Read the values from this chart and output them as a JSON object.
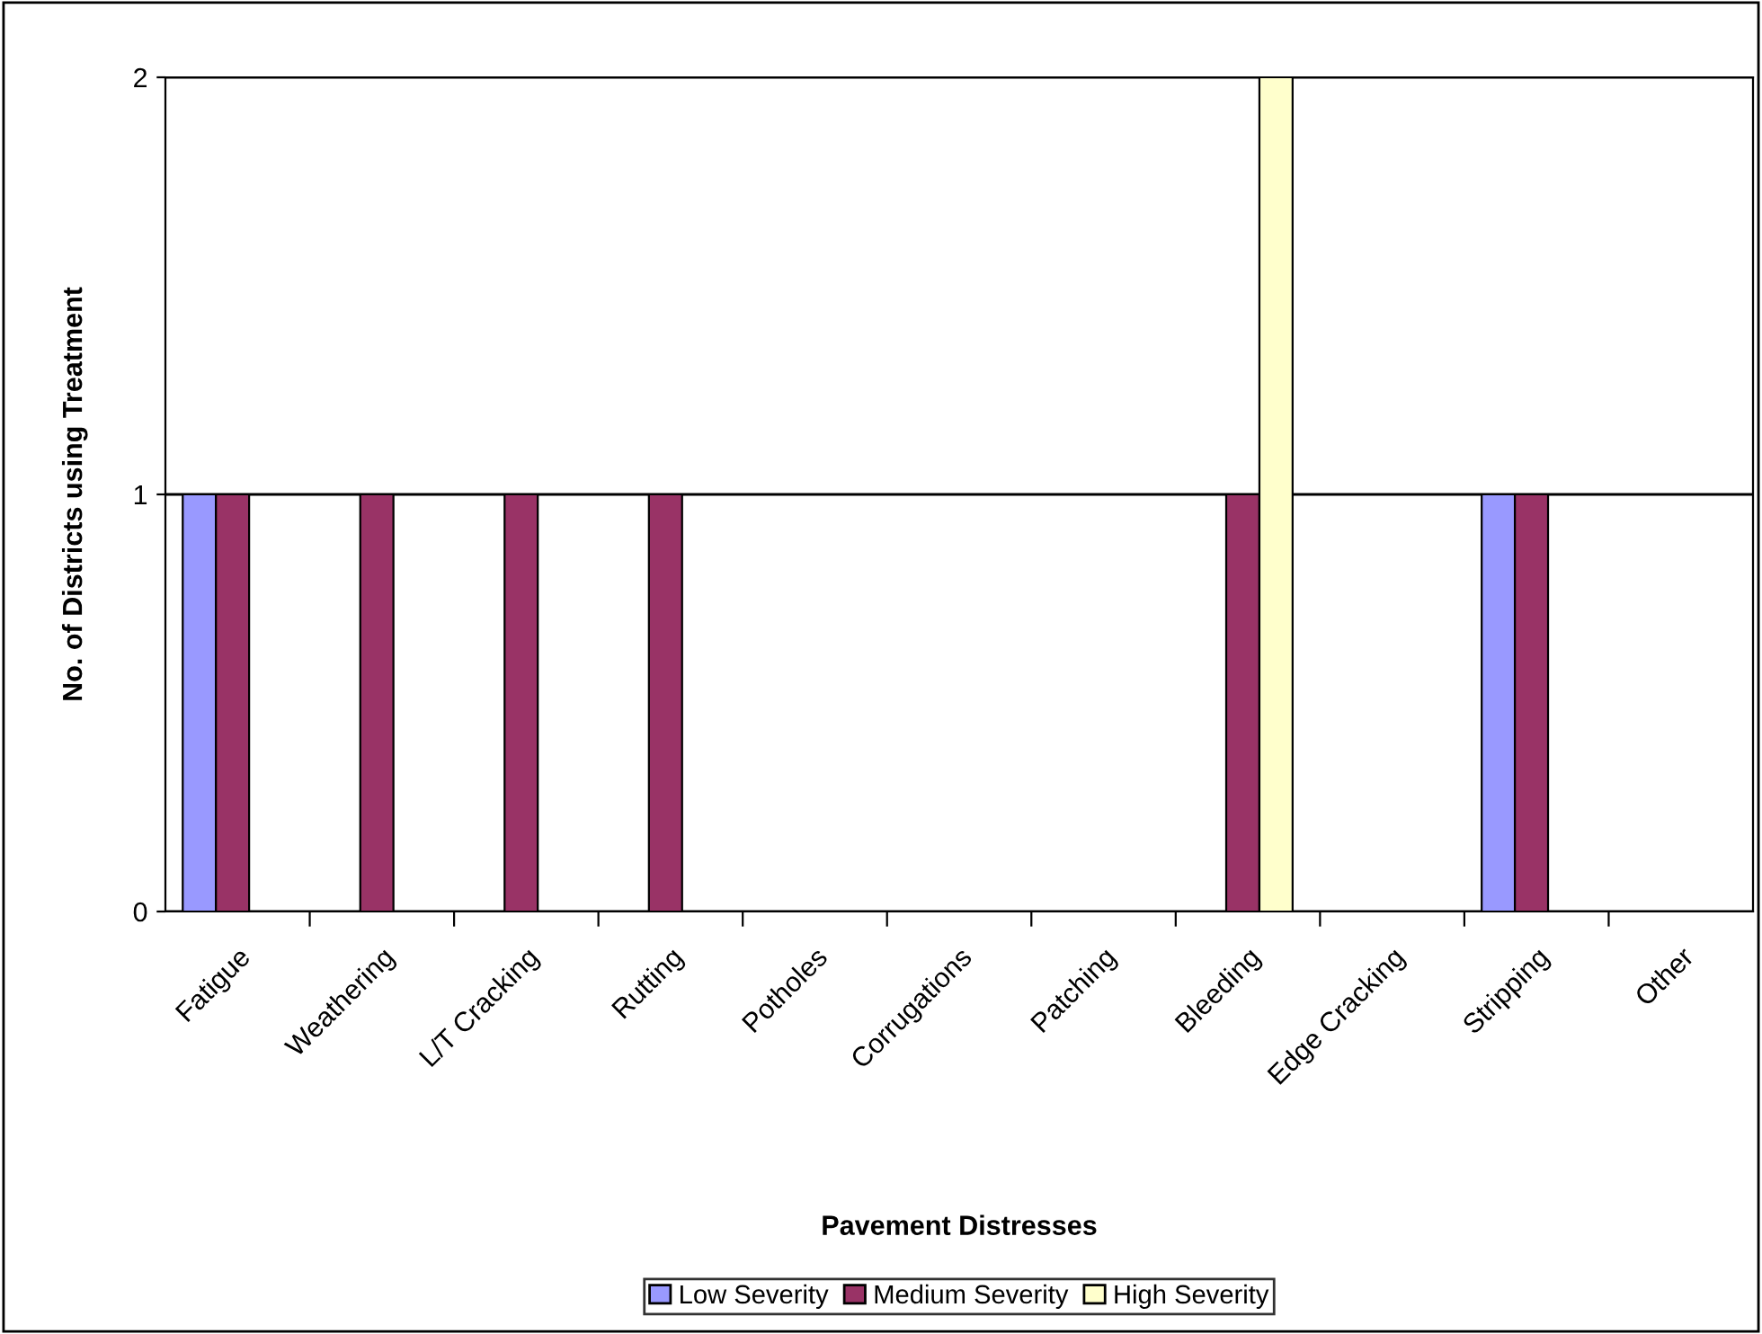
{
  "chart_data": {
    "type": "bar",
    "xlabel": "Pavement Distresses",
    "ylabel": "No. of Districts using Treatment",
    "categories": [
      "Fatigue",
      "Weathering",
      "L/T Cracking",
      "Rutting",
      "Potholes",
      "Corrugations",
      "Patching",
      "Bleeding",
      "Edge Cracking",
      "Stripping",
      "Other"
    ],
    "series": [
      {
        "name": "Low Severity",
        "color": "#9999ff",
        "values": [
          1,
          null,
          null,
          null,
          null,
          null,
          null,
          null,
          null,
          1,
          null
        ]
      },
      {
        "name": "Medium Severity",
        "color": "#993366",
        "values": [
          1,
          1,
          1,
          1,
          null,
          null,
          null,
          1,
          null,
          1,
          null
        ]
      },
      {
        "name": "High Severity",
        "color": "#ffffcc",
        "values": [
          null,
          null,
          null,
          null,
          null,
          null,
          null,
          2,
          null,
          null,
          null
        ]
      }
    ],
    "ylim": [
      0,
      2
    ],
    "yticks": [
      0,
      1,
      2
    ],
    "grid": "y",
    "legend": "bottom"
  }
}
